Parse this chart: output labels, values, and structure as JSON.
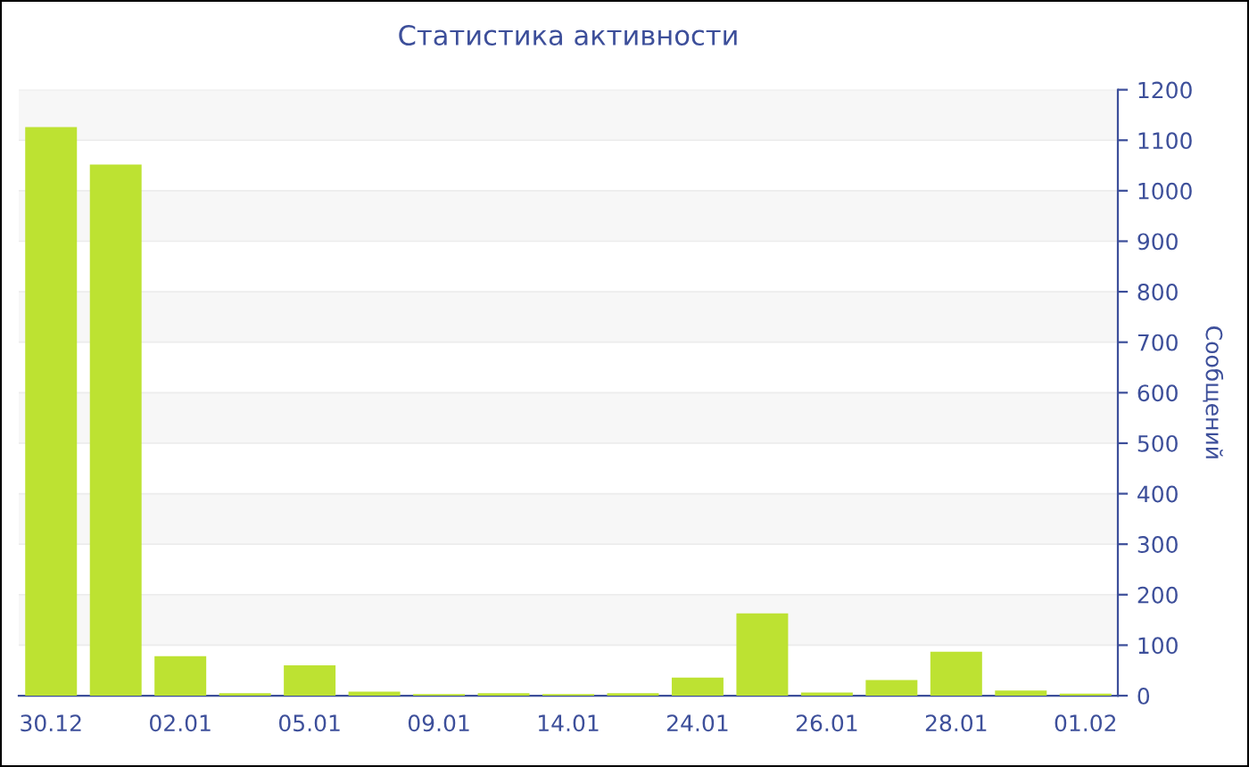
{
  "chart_data": {
    "type": "bar",
    "title": "Статистика активности",
    "ylabel": "Сообщений",
    "categories": [
      "30.12",
      null,
      "02.01",
      null,
      "05.01",
      null,
      "09.01",
      null,
      "14.01",
      null,
      "24.01",
      null,
      "26.01",
      null,
      "28.01",
      null,
      "01.02"
    ],
    "values": [
      1126,
      1052,
      78,
      5,
      60,
      8,
      3,
      5,
      3,
      5,
      36,
      163,
      6,
      31,
      87,
      10,
      4
    ],
    "color": "#bde232",
    "ylim": [
      0,
      1200
    ],
    "yticks": [
      0,
      100,
      200,
      300,
      400,
      500,
      600,
      700,
      800,
      900,
      1000,
      1100,
      1200
    ],
    "grid": "y",
    "legend": false
  }
}
